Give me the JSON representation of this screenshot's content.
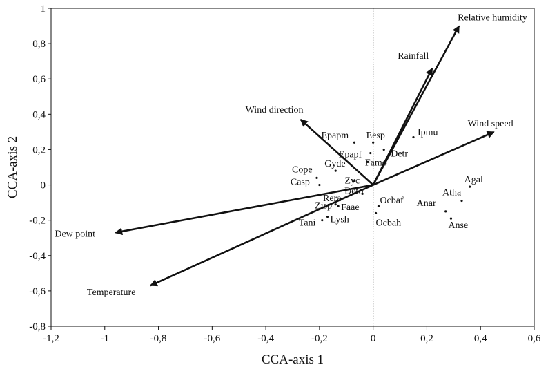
{
  "chart_data": {
    "type": "scatter",
    "title": "",
    "xlabel": "CCA-axis 1",
    "ylabel": "CCA-axis 2",
    "xlim": [
      -1.2,
      0.6
    ],
    "ylim": [
      -0.8,
      1.0
    ],
    "x_ticks": [
      -1.2,
      -1.0,
      -0.8,
      -0.6,
      -0.4,
      -0.2,
      0,
      0.2,
      0.4,
      0.6
    ],
    "y_ticks": [
      -0.8,
      -0.6,
      -0.4,
      -0.2,
      0,
      0.2,
      0.4,
      0.6,
      0.8,
      1.0
    ],
    "x_tick_labels": [
      "-1,2",
      "-1",
      "-0,8",
      "-0,6",
      "-0,4",
      "-0,2",
      "0",
      "0,2",
      "0,4",
      "0,6"
    ],
    "y_tick_labels": [
      "-0,8",
      "-0,6",
      "-0,4",
      "-0,2",
      "0",
      "0,2",
      "0,4",
      "0,6",
      "0,8",
      "1"
    ],
    "grid": false,
    "reference_lines": "dotted lines at x=0 and y=0",
    "vectors": [
      {
        "name": "Relative humidity",
        "x": 0.32,
        "y": 0.9
      },
      {
        "name": "Rainfall",
        "x": 0.22,
        "y": 0.66
      },
      {
        "name": "Wind speed",
        "x": 0.45,
        "y": 0.3
      },
      {
        "name": "Wind direction",
        "x": -0.27,
        "y": 0.37
      },
      {
        "name": "Dew point",
        "x": -0.96,
        "y": -0.27
      },
      {
        "name": "Temperature",
        "x": -0.83,
        "y": -0.57
      }
    ],
    "species": [
      {
        "name": "Epapm",
        "x": -0.07,
        "y": 0.24
      },
      {
        "name": "Eesp",
        "x": 0.0,
        "y": 0.24
      },
      {
        "name": "Epapf",
        "x": -0.01,
        "y": 0.18
      },
      {
        "name": "Ipmu",
        "x": 0.15,
        "y": 0.27
      },
      {
        "name": "Detr",
        "x": 0.04,
        "y": 0.2
      },
      {
        "name": "Famo",
        "x": -0.02,
        "y": 0.13
      },
      {
        "name": "Gyde",
        "x": -0.14,
        "y": 0.08
      },
      {
        "name": "Cope",
        "x": -0.21,
        "y": 0.04
      },
      {
        "name": "Casp",
        "x": -0.2,
        "y": 0.0
      },
      {
        "name": "Zyc",
        "x": -0.07,
        "y": 0.02
      },
      {
        "name": "Deto",
        "x": -0.04,
        "y": -0.05
      },
      {
        "name": "Rera",
        "x": -0.12,
        "y": -0.08
      },
      {
        "name": "Zisp",
        "x": -0.14,
        "y": -0.11
      },
      {
        "name": "Faae",
        "x": -0.13,
        "y": -0.12
      },
      {
        "name": "Tani",
        "x": -0.19,
        "y": -0.2
      },
      {
        "name": "Lysh",
        "x": -0.17,
        "y": -0.18
      },
      {
        "name": "Ocbaf",
        "x": 0.02,
        "y": -0.12
      },
      {
        "name": "Ocbah",
        "x": 0.01,
        "y": -0.16
      },
      {
        "name": "Agal",
        "x": 0.36,
        "y": -0.01
      },
      {
        "name": "Atha",
        "x": 0.33,
        "y": -0.09
      },
      {
        "name": "Anar",
        "x": 0.27,
        "y": -0.15
      },
      {
        "name": "Anse",
        "x": 0.29,
        "y": -0.19
      }
    ]
  }
}
